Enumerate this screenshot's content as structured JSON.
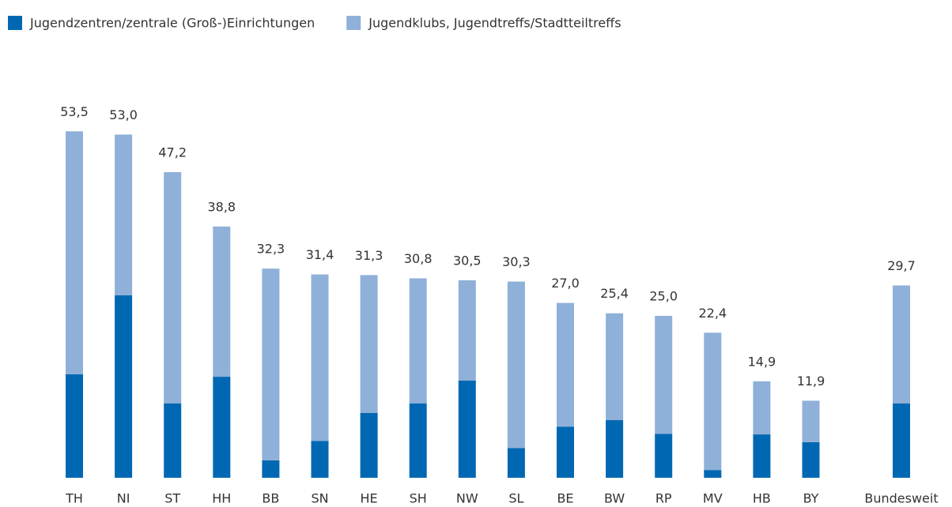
{
  "chart_data": {
    "type": "stacked_bar",
    "categories": [
      "TH",
      "NI",
      "ST",
      "HH",
      "BB",
      "SN",
      "HE",
      "SH",
      "NW",
      "SL",
      "BE",
      "BW",
      "RP",
      "MV",
      "HB",
      "BY",
      "Bundesweit"
    ],
    "series": [
      {
        "name": "Jugendzentren/zentrale (Groß-)Einrichtungen",
        "color": "#0068b3",
        "values": [
          16.0,
          28.2,
          11.5,
          15.6,
          2.7,
          5.7,
          10.0,
          11.5,
          15.0,
          4.6,
          7.9,
          8.9,
          6.8,
          1.2,
          6.7,
          5.5,
          11.5
        ]
      },
      {
        "name": "Jugendklubs, Jugendtreffs/Stadtteiltreffs",
        "color": "#8fb0d8",
        "values": [
          37.5,
          24.8,
          35.7,
          23.2,
          29.6,
          25.7,
          21.3,
          19.3,
          15.5,
          25.7,
          19.1,
          16.5,
          18.2,
          21.2,
          8.2,
          6.4,
          18.2
        ]
      }
    ],
    "totals": [
      53.5,
      53.0,
      47.2,
      38.8,
      32.3,
      31.4,
      31.3,
      30.8,
      30.5,
      30.3,
      27.0,
      25.4,
      25.0,
      22.4,
      14.9,
      11.9,
      29.7
    ],
    "total_labels": [
      "53,5",
      "53,0",
      "47,2",
      "38,8",
      "32,3",
      "31,4",
      "31,3",
      "30,8",
      "30,5",
      "30,3",
      "27,0",
      "25,4",
      "25,0",
      "22,4",
      "14,9",
      "11,9",
      "29,7"
    ],
    "ylim": [
      0,
      60
    ],
    "legend": "top-left"
  }
}
